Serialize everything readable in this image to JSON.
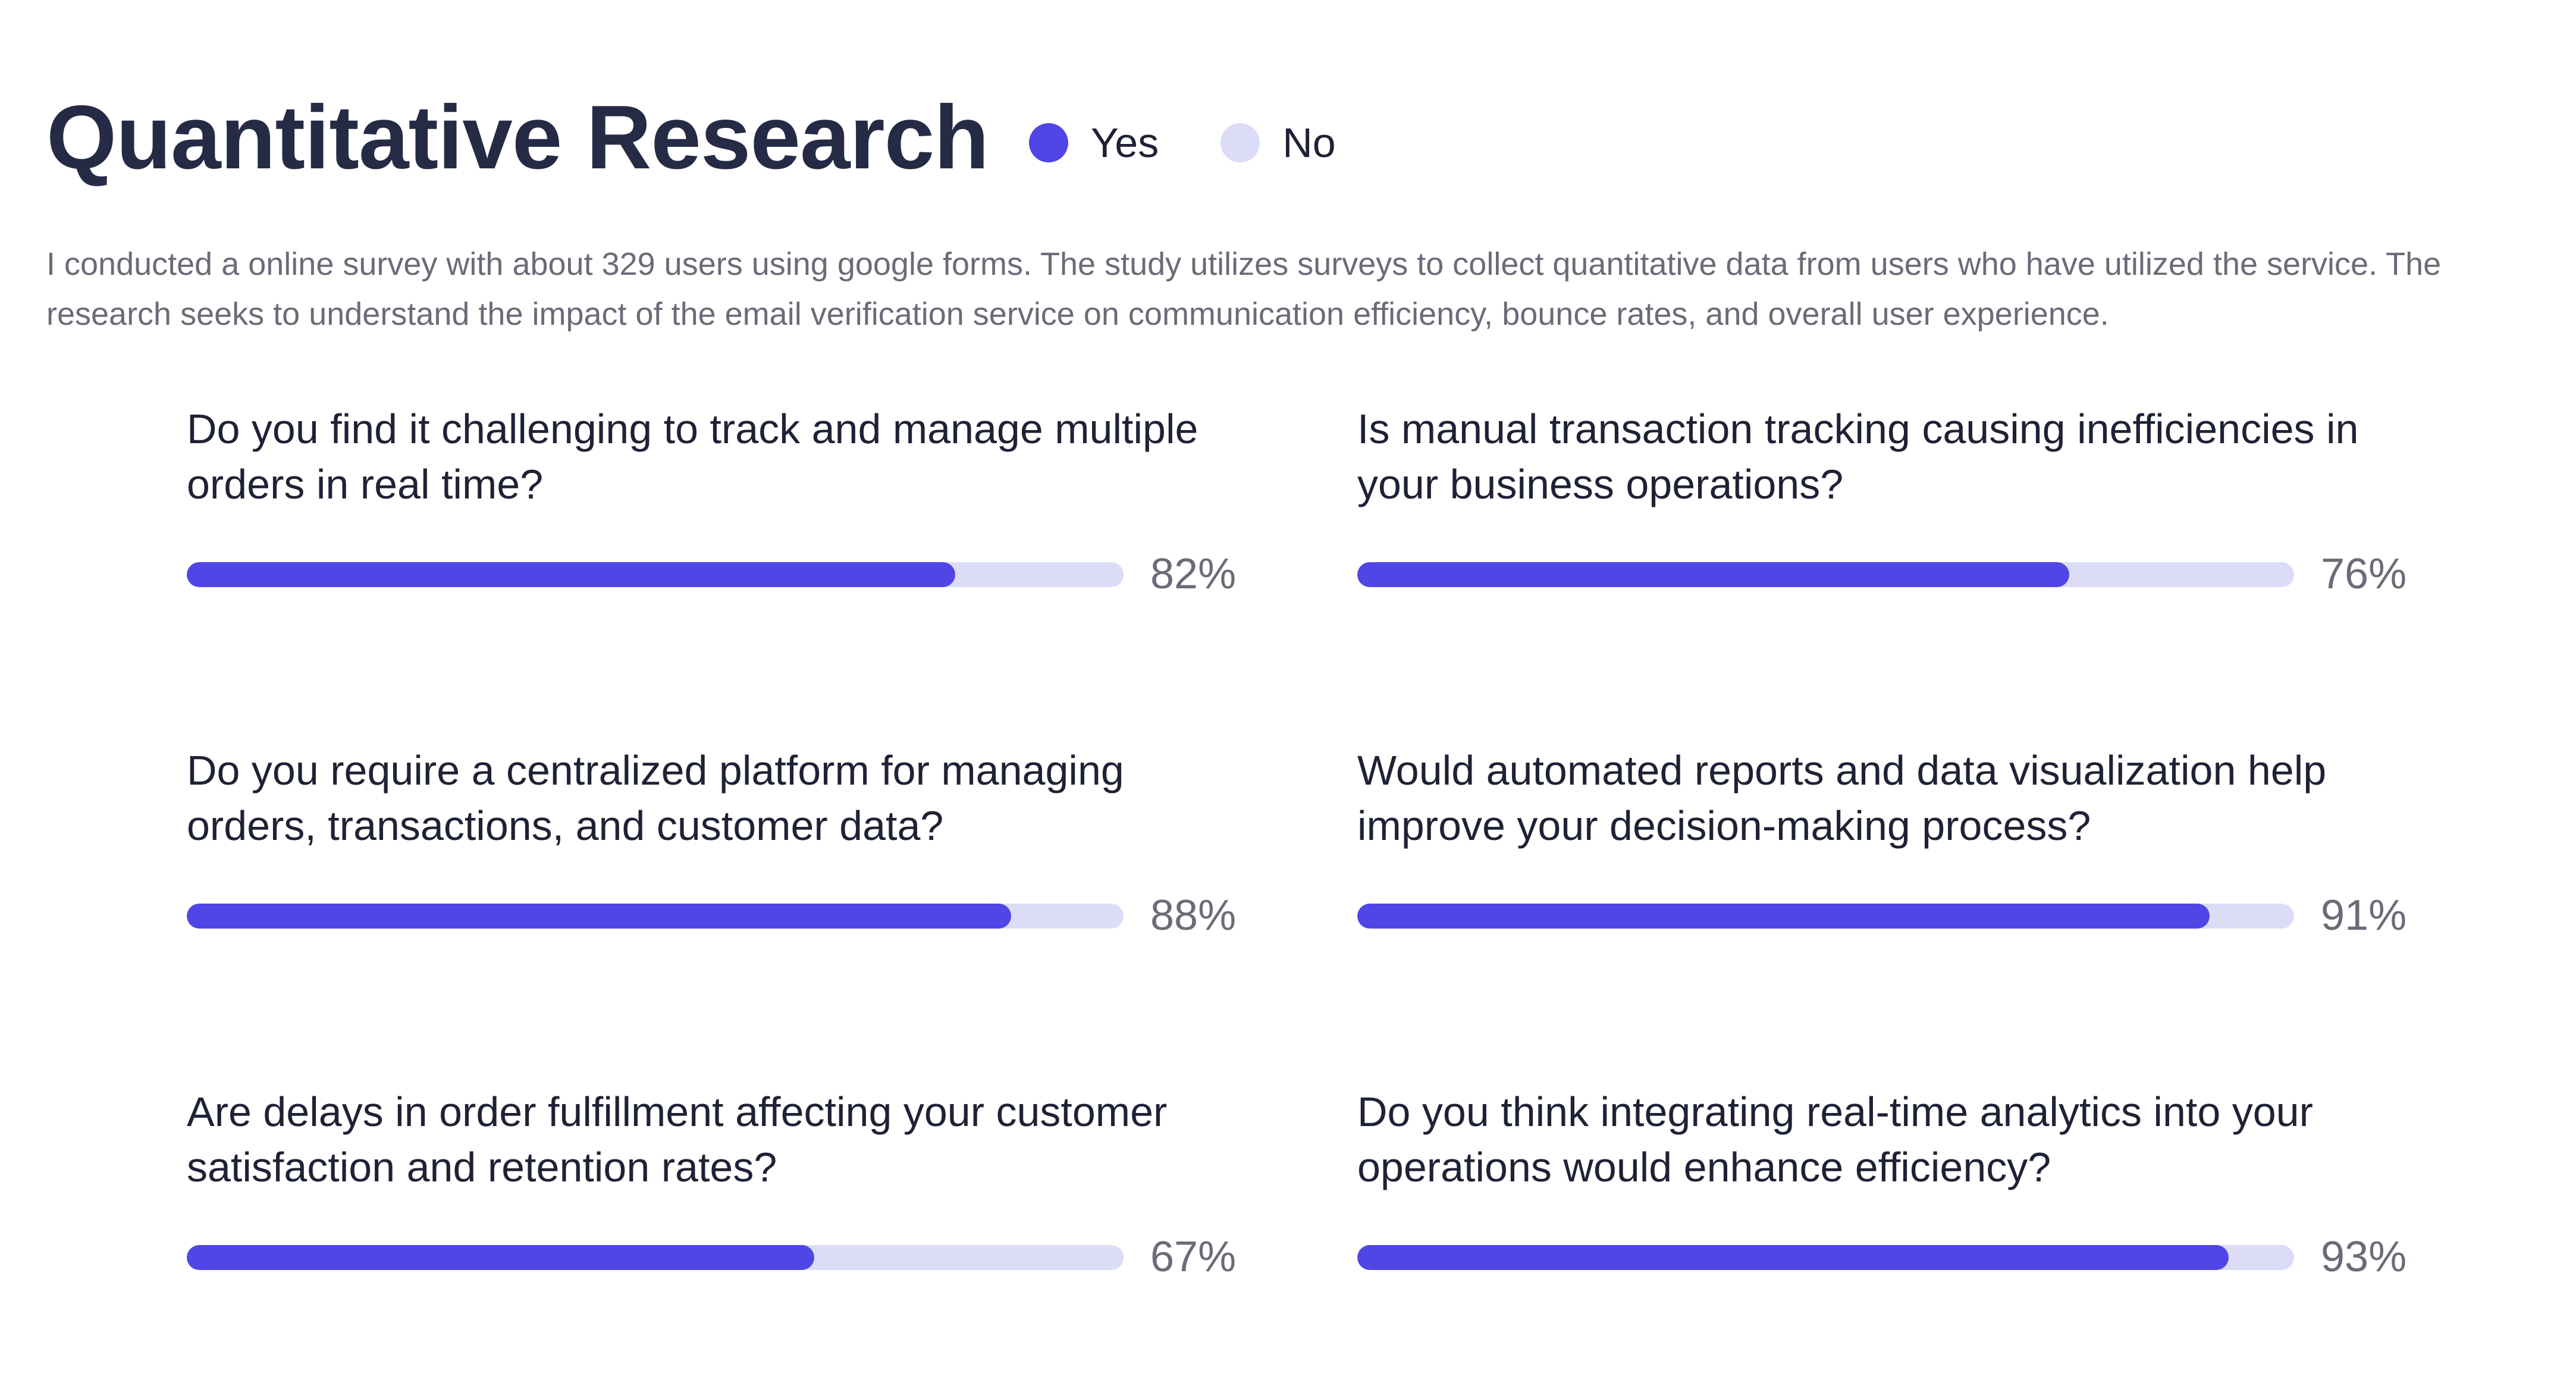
{
  "title": "Quantitative Research",
  "legend": [
    {
      "label": "Yes",
      "color": "#4f46e5"
    },
    {
      "label": "No",
      "color": "#dcdcf7"
    }
  ],
  "description": "I conducted a online survey with about 329 users using google forms. The study utilizes surveys to collect quantitative data from users who have utilized the service. The research seeks to understand the impact of the email verification service on communication efficiency, bounce rates, and overall user experience.",
  "chart_data": {
    "type": "bar",
    "orientation": "horizontal",
    "title": "Quantitative Research",
    "series": [
      {
        "name": "Yes",
        "color": "#4f46e5"
      },
      {
        "name": "No",
        "color": "#dcdcf7"
      }
    ],
    "unit": "%",
    "xlim": [
      0,
      100
    ],
    "items": [
      {
        "question": "Do you find it challenging to track and manage multiple orders in real time?",
        "value": 82,
        "label": "82%"
      },
      {
        "question": "Is manual transaction tracking causing inefficiencies in your business operations?",
        "value": 76,
        "label": "76%"
      },
      {
        "question": "Do you require a centralized platform for managing orders, transactions, and customer data?",
        "value": 88,
        "label": "88%"
      },
      {
        "question": "Would automated reports and data visualization help improve your decision-making process?",
        "value": 91,
        "label": "91%"
      },
      {
        "question": "Are delays in order fulfillment affecting your customer satisfaction and retention rates?",
        "value": 67,
        "label": "67%"
      },
      {
        "question": "Do you think integrating real-time analytics into your operations would enhance efficiency?",
        "value": 93,
        "label": "93%"
      }
    ]
  }
}
